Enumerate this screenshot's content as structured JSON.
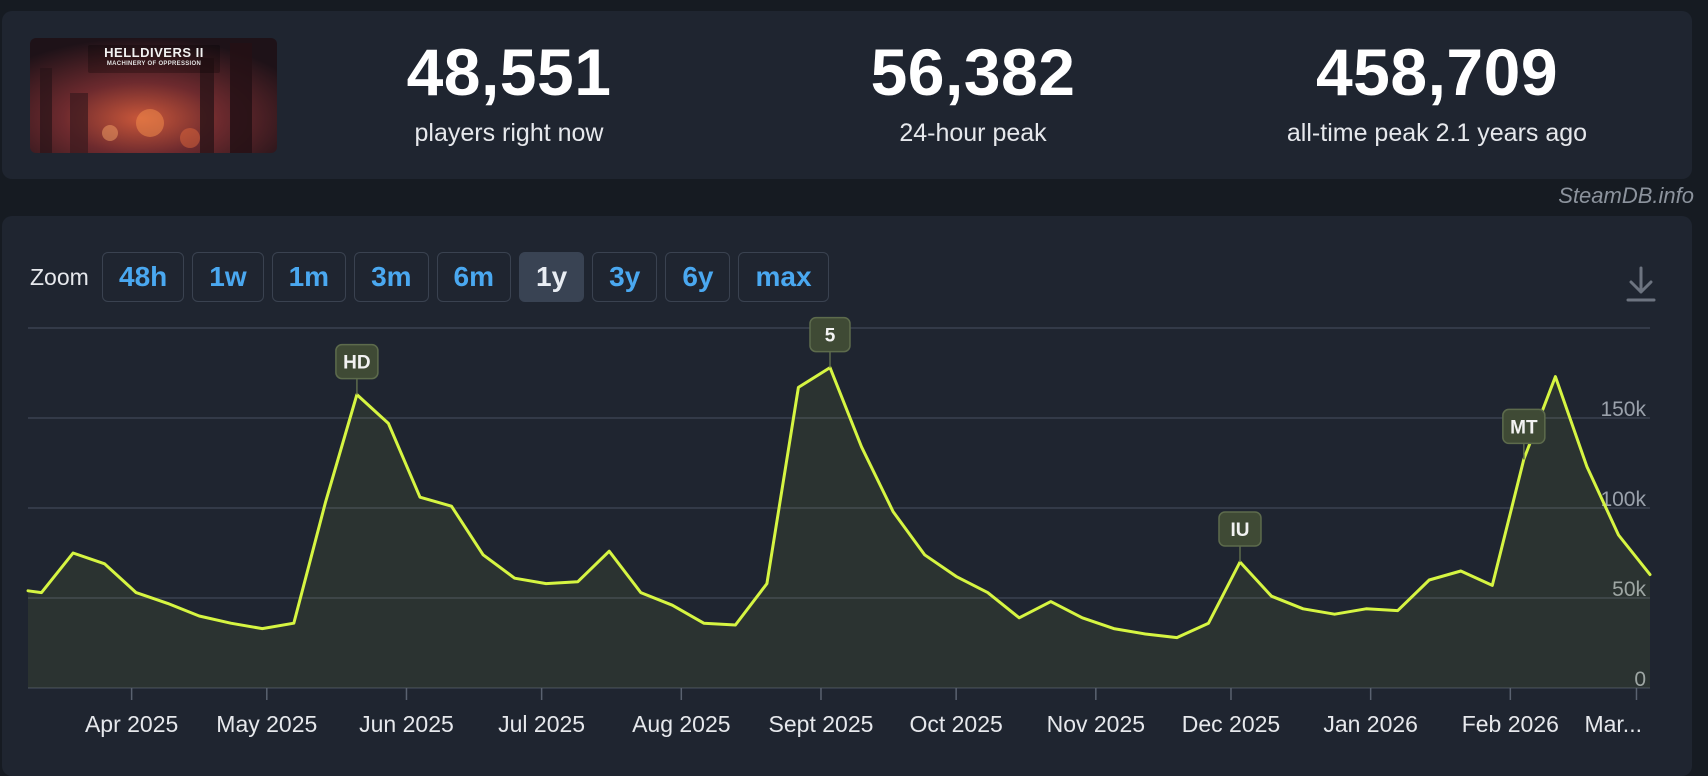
{
  "header": {
    "game_title": "HELLDIVERS II",
    "game_subtitle": "MACHINERY OF OPPRESSION",
    "stats": [
      {
        "value": "48,551",
        "label": "players right now"
      },
      {
        "value": "56,382",
        "label": "24-hour peak"
      },
      {
        "value": "458,709",
        "label": "all-time peak 2.1 years ago"
      }
    ]
  },
  "brand": "SteamDB.info",
  "zoom": {
    "label": "Zoom",
    "options": [
      "48h",
      "1w",
      "1m",
      "3m",
      "6m",
      "1y",
      "3y",
      "6y",
      "max"
    ],
    "selected": "1y"
  },
  "colors": {
    "line": "#d6f542",
    "annotation_bg": "#3f4a35",
    "annotation_border": "#5d6b4c",
    "link": "#4aa8f0",
    "grid": "#3a4150"
  },
  "icons": {
    "download": "download-icon"
  },
  "chart_data": {
    "type": "area",
    "x_tick_labels": [
      "Apr 2025",
      "May 2025",
      "Jun 2025",
      "Jul 2025",
      "Aug 2025",
      "Sept 2025",
      "Oct 2025",
      "Nov 2025",
      "Dec 2025",
      "Jan 2026",
      "Feb 2026",
      "Mar..."
    ],
    "y_ticks": [
      0,
      50000,
      100000,
      150000
    ],
    "y_tick_labels": [
      "0",
      "50k",
      "100k",
      "150k"
    ],
    "ylim": [
      0,
      200000
    ],
    "series": [
      {
        "x": [
          "2025-03-09",
          "2025-03-12",
          "2025-03-19",
          "2025-03-26",
          "2025-04-02",
          "2025-04-09",
          "2025-04-16",
          "2025-04-23",
          "2025-04-30",
          "2025-05-07",
          "2025-05-14",
          "2025-05-21",
          "2025-05-28",
          "2025-06-04",
          "2025-06-11",
          "2025-06-18",
          "2025-06-25",
          "2025-07-02",
          "2025-07-09",
          "2025-07-16",
          "2025-07-23",
          "2025-07-30",
          "2025-08-06",
          "2025-08-13",
          "2025-08-20",
          "2025-08-27",
          "2025-09-03",
          "2025-09-10",
          "2025-09-17",
          "2025-09-24",
          "2025-10-01",
          "2025-10-08",
          "2025-10-15",
          "2025-10-22",
          "2025-10-29",
          "2025-11-05",
          "2025-11-12",
          "2025-11-19",
          "2025-11-26",
          "2025-12-03",
          "2025-12-10",
          "2025-12-17",
          "2025-12-24",
          "2025-12-31",
          "2026-01-07",
          "2026-01-14",
          "2026-01-21",
          "2026-01-28",
          "2026-02-04",
          "2026-02-11",
          "2026-02-18",
          "2026-02-25",
          "2026-03-04"
        ],
        "y": [
          54000,
          53000,
          75000,
          69000,
          53000,
          47000,
          40000,
          36000,
          33000,
          36000,
          103000,
          163000,
          147000,
          106000,
          101000,
          74000,
          61000,
          58000,
          59000,
          76000,
          53000,
          46000,
          36000,
          35000,
          58000,
          167000,
          178000,
          134000,
          98000,
          74000,
          62000,
          53000,
          39000,
          48000,
          39000,
          33000,
          30000,
          28000,
          36000,
          70000,
          51000,
          44000,
          41000,
          44000,
          43000,
          60000,
          65000,
          57000,
          127000,
          173000,
          123000,
          85000,
          63000
        ]
      }
    ],
    "annotations": [
      {
        "label": "HD",
        "x": "2025-05-21"
      },
      {
        "label": "5",
        "x": "2025-09-03"
      },
      {
        "label": "IU",
        "x": "2025-12-03"
      },
      {
        "label": "MT",
        "x": "2026-02-04"
      }
    ],
    "grid": true
  }
}
